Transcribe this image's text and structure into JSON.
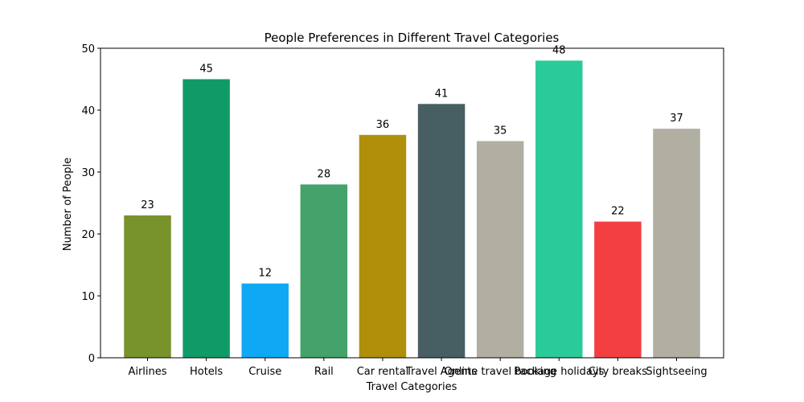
{
  "chart_data": {
    "type": "bar",
    "title": "People Preferences in Different Travel Categories",
    "xlabel": "Travel Categories",
    "ylabel": "Number of People",
    "ylim": [
      0,
      50
    ],
    "yticks": [
      0,
      10,
      20,
      30,
      40,
      50
    ],
    "categories": [
      "Airlines",
      "Hotels",
      "Cruise",
      "Rail",
      "Car rental",
      "Travel Agents",
      "Online travel booking",
      "Package holidays",
      "City breaks",
      "Sightseeing"
    ],
    "values": [
      23,
      45,
      12,
      28,
      36,
      41,
      35,
      48,
      22,
      37
    ],
    "colors": [
      "#78922c",
      "#109a67",
      "#0ea8f4",
      "#43a36a",
      "#b0900a",
      "#475f62",
      "#b0afa1",
      "#2acb98",
      "#f33f42",
      "#b0afa1"
    ],
    "grid": false,
    "legend": "none"
  }
}
